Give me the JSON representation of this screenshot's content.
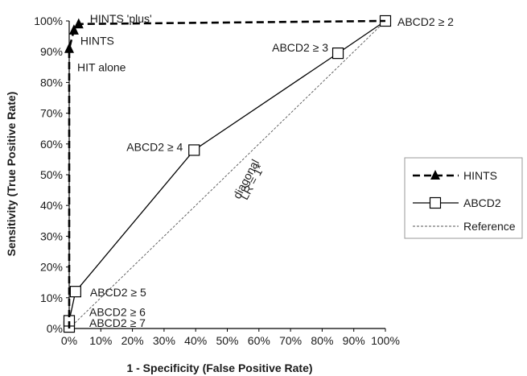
{
  "chart_data": {
    "type": "line",
    "title": "",
    "xlabel": "1 - Specificity (False Positive Rate)",
    "ylabel": "Sensitivity (True Positive Rate)",
    "xlim": [
      0,
      100
    ],
    "ylim": [
      0,
      100
    ],
    "x_ticks": [
      "0%",
      "10%",
      "20%",
      "30%",
      "40%",
      "50%",
      "60%",
      "70%",
      "80%",
      "90%",
      "100%"
    ],
    "y_ticks": [
      "0%",
      "10%",
      "20%",
      "30%",
      "40%",
      "50%",
      "60%",
      "70%",
      "80%",
      "90%",
      "100%"
    ],
    "grid": false,
    "legend_position": "right",
    "series": [
      {
        "name": "HINTS",
        "style": "dashed",
        "marker": "triangle",
        "color": "#000000",
        "points": [
          [
            0,
            0
          ],
          [
            0,
            91
          ],
          [
            1.5,
            97
          ],
          [
            3,
            99
          ],
          [
            100,
            100
          ]
        ]
      },
      {
        "name": "ABCD2",
        "style": "solid",
        "marker": "square",
        "color": "#000000",
        "points": [
          [
            0,
            0
          ],
          [
            0,
            0.5
          ],
          [
            0,
            2.5
          ],
          [
            2,
            12
          ],
          [
            39.5,
            58
          ],
          [
            85,
            89.5
          ],
          [
            100,
            100
          ]
        ]
      },
      {
        "name": "Reference",
        "style": "dotted",
        "marker": "none",
        "color": "#555555",
        "points": [
          [
            0,
            0
          ],
          [
            100,
            100
          ]
        ]
      }
    ],
    "annotations": [
      {
        "text": "HINTS 'plus'",
        "x": 3,
        "y": 99
      },
      {
        "text": "HINTS",
        "x": 1.5,
        "y": 97
      },
      {
        "text": "HIT alone",
        "x": 0,
        "y": 91
      },
      {
        "text": "ABCD2 ≥ 2",
        "x": 100,
        "y": 100
      },
      {
        "text": "ABCD2 ≥ 3",
        "x": 85,
        "y": 89.5
      },
      {
        "text": "ABCD2 ≥ 4",
        "x": 39.5,
        "y": 58
      },
      {
        "text": "ABCD2 ≥ 5",
        "x": 2,
        "y": 12
      },
      {
        "text": "ABCD2 ≥ 6",
        "x": 0,
        "y": 2.5
      },
      {
        "text": "ABCD2 ≥ 7",
        "x": 0,
        "y": 0.5
      },
      {
        "text": "diagonal",
        "x": 57,
        "y": 48
      },
      {
        "text": "LR = 1*",
        "x": 59,
        "y": 47
      }
    ]
  }
}
